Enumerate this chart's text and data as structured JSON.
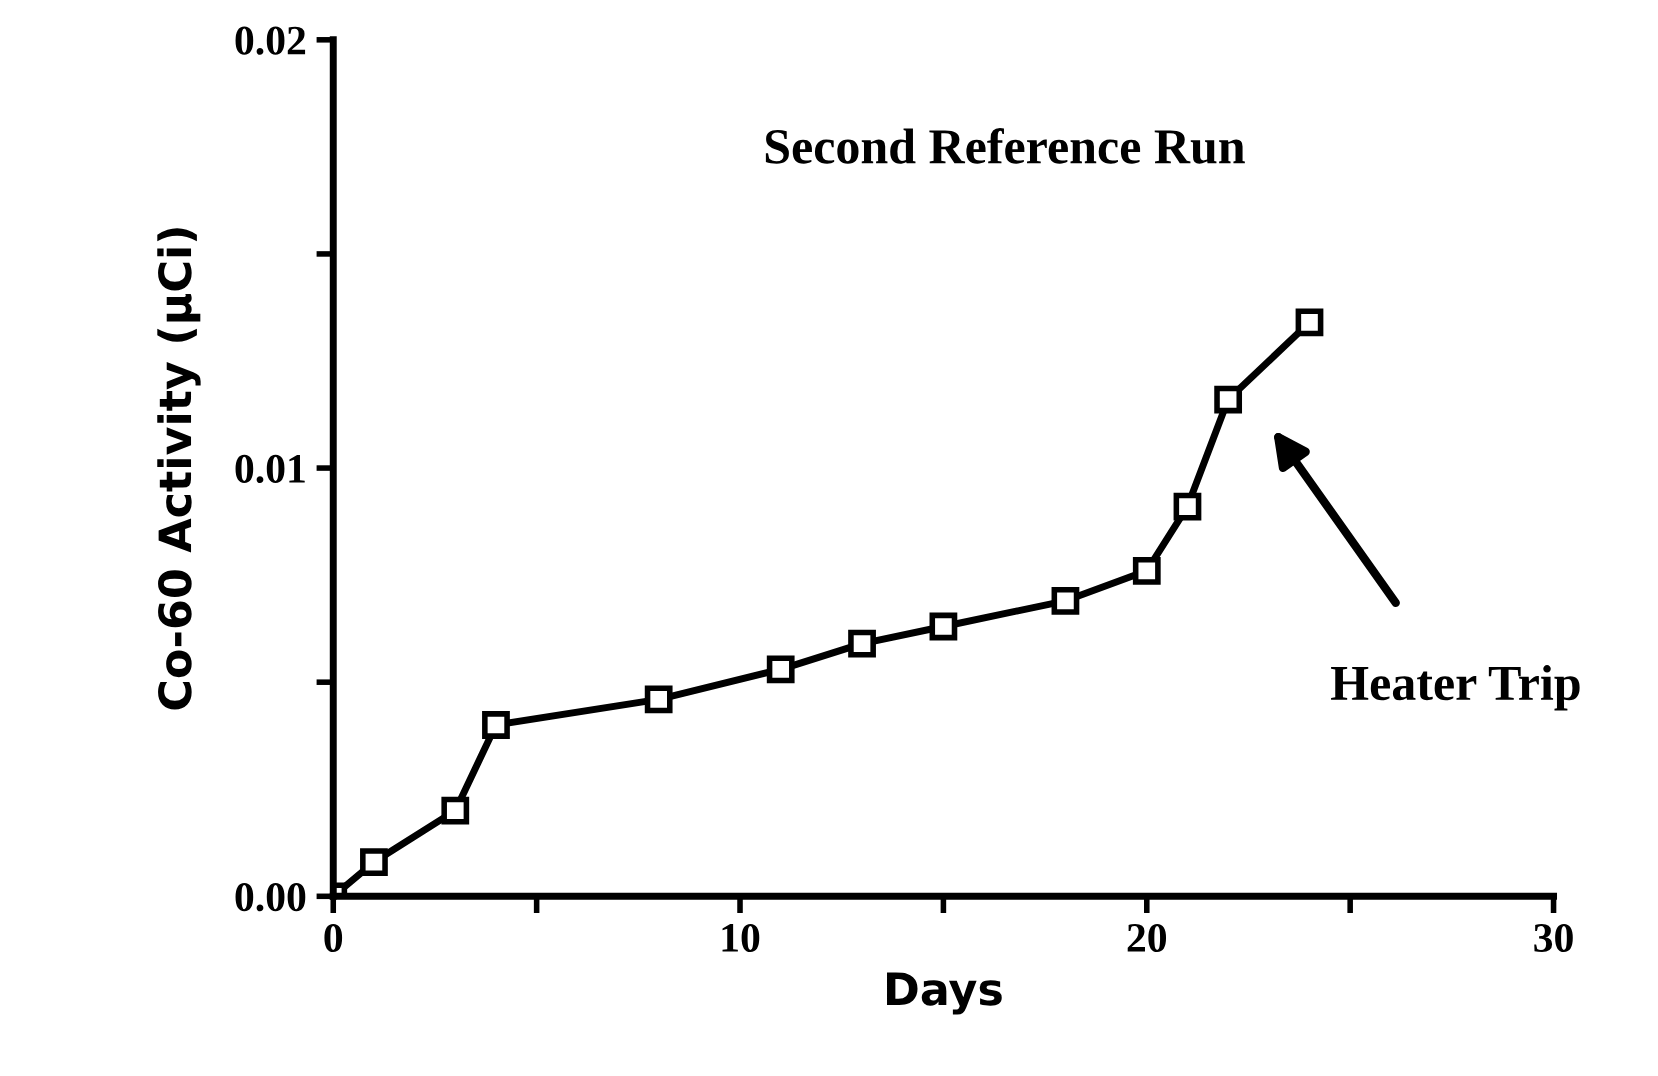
{
  "chart_data": {
    "type": "line",
    "xlabel": "Days",
    "ylabel": "Co-60 Activity (µCi)",
    "x": [
      0,
      1,
      3,
      4,
      8,
      11,
      13,
      15,
      18,
      20,
      21,
      22,
      24
    ],
    "series": [
      {
        "color": "#000000",
        "values": [
          0,
          0.0008,
          0.002,
          0.004,
          0.0046,
          0.0053,
          0.0059,
          0.0063,
          0.0069,
          0.0076,
          0.0091,
          0.0116,
          0.0134
        ]
      }
    ],
    "xlim": [
      0,
      30
    ],
    "ylim": [
      0,
      0.02
    ],
    "xticks": [
      0,
      {
        "value": 5,
        "label": null
      },
      10,
      {
        "value": 15,
        "label": null
      },
      20,
      {
        "value": 25,
        "label": null
      },
      30
    ],
    "yticks": [
      {
        "value": 0,
        "label": "0.00"
      },
      {
        "value": 0.005,
        "label": null
      },
      {
        "value": 0.01,
        "label": "0.01"
      },
      {
        "value": 0.015,
        "label": null
      },
      {
        "value": 0.02,
        "label": "0.02"
      }
    ],
    "marker": "square",
    "line_style": "solid",
    "grid": false,
    "legend": false,
    "annotations": [
      "Second Reference Run",
      "Heater Trip"
    ]
  }
}
